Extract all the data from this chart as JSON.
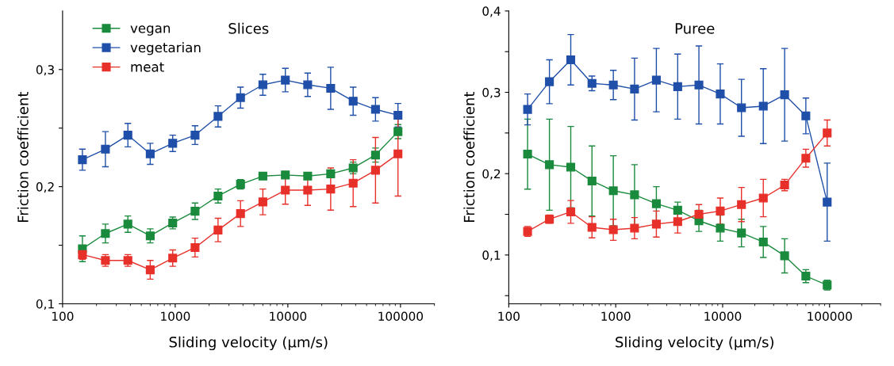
{
  "chart_data": [
    {
      "type": "line",
      "title": "Slices",
      "xlabel": "Sliding velocity (µm/s)",
      "ylabel": "Friction coefficient",
      "log": "x",
      "marker": "square",
      "line_style": "solid",
      "legend": "top left",
      "grid": false,
      "xlim": [
        100,
        200000
      ],
      "xticks": [
        100,
        1000,
        10000,
        100000
      ],
      "ylim": [
        0.1,
        0.35
      ],
      "yticks": [
        {
          "value": 0.1,
          "label": "0,1"
        },
        {
          "value": 0.15,
          "label": null
        },
        {
          "value": 0.2,
          "label": "0,2"
        },
        {
          "value": 0.25,
          "label": null
        },
        {
          "value": 0.3,
          "label": "0,3"
        }
      ],
      "x": [
        150,
        240,
        380,
        600,
        950,
        1500,
        2400,
        3800,
        6000,
        9500,
        15000,
        24000,
        38000,
        60000,
        95000
      ],
      "series": [
        {
          "name": "vegan",
          "color": "#1a8a3c",
          "values": [
            0.147,
            0.16,
            0.168,
            0.158,
            0.169,
            0.179,
            0.192,
            0.202,
            0.209,
            0.21,
            0.209,
            0.211,
            0.216,
            0.227,
            0.247
          ],
          "errors": [
            0.011,
            0.008,
            0.007,
            0.006,
            0.005,
            0.007,
            0.006,
            0.004,
            0.002,
            0.002,
            0.002,
            0.002,
            0.005,
            0.006,
            0.006
          ]
        },
        {
          "name": "vegetarian",
          "color": "#1f4fa8",
          "values": [
            0.223,
            0.232,
            0.244,
            0.228,
            0.237,
            0.244,
            0.26,
            0.276,
            0.287,
            0.291,
            0.287,
            0.284,
            0.273,
            0.266,
            0.261
          ],
          "errors": [
            0.009,
            0.015,
            0.01,
            0.009,
            0.007,
            0.008,
            0.009,
            0.009,
            0.009,
            0.01,
            0.01,
            0.018,
            0.012,
            0.01,
            0.01
          ]
        },
        {
          "name": "meat",
          "color": "#e8302a",
          "values": [
            0.142,
            0.137,
            0.137,
            0.129,
            0.139,
            0.148,
            0.163,
            0.177,
            0.187,
            0.197,
            0.197,
            0.198,
            0.203,
            0.214,
            0.228
          ],
          "errors": [
            0.004,
            0.005,
            0.005,
            0.008,
            0.007,
            0.008,
            0.01,
            0.011,
            0.011,
            0.012,
            0.013,
            0.018,
            0.02,
            0.028,
            0.036
          ]
        }
      ]
    },
    {
      "type": "line",
      "title": "Puree",
      "xlabel": "Sliding velocity (µm/s)",
      "ylabel": "Friction coefficient",
      "log": "x",
      "marker": "square",
      "line_style": "solid",
      "grid": false,
      "xlim": [
        100,
        300000
      ],
      "xticks": [
        100,
        1000,
        10000,
        100000
      ],
      "ylim": [
        0.04,
        0.4
      ],
      "yticks": [
        {
          "value": 0.05,
          "label": null
        },
        {
          "value": 0.1,
          "label": "0,1"
        },
        {
          "value": 0.15,
          "label": null
        },
        {
          "value": 0.2,
          "label": "0,2"
        },
        {
          "value": 0.25,
          "label": null
        },
        {
          "value": 0.3,
          "label": "0,3"
        },
        {
          "value": 0.35,
          "label": null
        },
        {
          "value": 0.4,
          "label": "0,4"
        }
      ],
      "x": [
        150,
        240,
        380,
        600,
        950,
        1500,
        2400,
        3800,
        6000,
        9500,
        15000,
        24000,
        38000,
        60000,
        95000
      ],
      "series": [
        {
          "color": "#1a8a3c",
          "values": [
            0.224,
            0.211,
            0.208,
            0.191,
            0.179,
            0.174,
            0.163,
            0.155,
            0.142,
            0.133,
            0.127,
            0.116,
            0.099,
            0.074,
            0.063
          ],
          "errors": [
            0.043,
            0.056,
            0.05,
            0.043,
            0.043,
            0.037,
            0.021,
            0.01,
            0.013,
            0.016,
            0.017,
            0.019,
            0.021,
            0.008,
            0.006
          ]
        },
        {
          "color": "#1f4fa8",
          "values": [
            0.279,
            0.313,
            0.34,
            0.311,
            0.309,
            0.304,
            0.315,
            0.307,
            0.309,
            0.298,
            0.281,
            0.283,
            0.297,
            0.271,
            0.165
          ],
          "errors": [
            0.019,
            0.027,
            0.031,
            0.009,
            0.018,
            0.038,
            0.039,
            0.04,
            0.048,
            0.037,
            0.035,
            0.046,
            0.057,
            0.022,
            0.048
          ]
        },
        {
          "color": "#e8302a",
          "values": [
            0.129,
            0.144,
            0.153,
            0.134,
            0.131,
            0.133,
            0.138,
            0.141,
            0.15,
            0.154,
            0.162,
            0.17,
            0.186,
            0.219,
            0.25
          ],
          "errors": [
            0.006,
            0.005,
            0.014,
            0.013,
            0.013,
            0.013,
            0.016,
            0.014,
            0.012,
            0.016,
            0.021,
            0.023,
            0.007,
            0.011,
            0.016
          ]
        }
      ]
    }
  ]
}
